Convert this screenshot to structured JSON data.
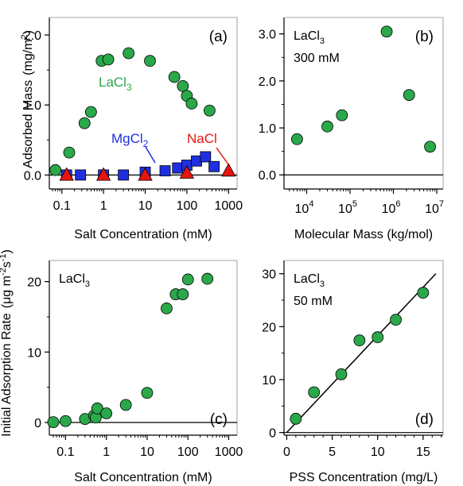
{
  "colors": {
    "green": "#2aa84a",
    "blue": "#1f2fe0",
    "red": "#e8150f",
    "axis": "#000000"
  },
  "shared_labels": {
    "y_top": "Adsorbed Mass",
    "y_top_unit": "(mg/m",
    "y_top_sup": "2",
    "y_top_close": ")",
    "y_bottom_main": "Initial Adsorption Rate",
    "y_bottom_unit": "(μg m",
    "y_bottom_sup1": "-2",
    "y_bottom_s": "s",
    "y_bottom_sup2": "-1",
    "y_bottom_close": ")"
  },
  "chart_data": [
    {
      "type": "scatter",
      "panel": "(a)",
      "xlabel": "Salt Concentration (mM)",
      "x_scale": "log",
      "xlim": [
        0.05,
        1600
      ],
      "ylim": [
        -0.2,
        2.25
      ],
      "x_tick_labels": [
        "0.1",
        "1",
        "10",
        "100",
        "1000"
      ],
      "x_tick_values": [
        0.1,
        1,
        10,
        100,
        1000
      ],
      "y_tick_labels": [
        "0.0",
        "1.0",
        "2.0"
      ],
      "y_tick_values": [
        0,
        1,
        2
      ],
      "series": [
        {
          "name": "LaCl",
          "name_sub": "3",
          "marker": "circle",
          "color": "#2aa84a",
          "x": [
            0.07,
            0.15,
            0.35,
            0.5,
            0.9,
            1.3,
            4,
            13,
            50,
            80,
            100,
            130,
            350
          ],
          "y": [
            0.07,
            0.32,
            0.74,
            0.9,
            1.63,
            1.65,
            1.74,
            1.63,
            1.4,
            1.27,
            1.13,
            1.02,
            0.92
          ]
        },
        {
          "name": "MgCl",
          "name_sub": "2",
          "marker": "square",
          "color": "#1f2fe0",
          "x": [
            0.13,
            0.28,
            1.0,
            3.0,
            10,
            30,
            60,
            100,
            170,
            280,
            450
          ],
          "y": [
            0.0,
            0.0,
            0.0,
            0.0,
            0.04,
            0.06,
            0.1,
            0.14,
            0.2,
            0.26,
            0.12
          ]
        },
        {
          "name": "NaCl",
          "name_sub": "",
          "marker": "triangle",
          "color": "#e8150f",
          "x": [
            0.13,
            1.0,
            10,
            100,
            1000
          ],
          "y": [
            0.0,
            0.0,
            0.0,
            0.03,
            0.06
          ]
        }
      ]
    },
    {
      "type": "scatter",
      "panel": "(b)",
      "annotation_line1": "LaCl",
      "annotation_sub": "3",
      "annotation_line2": "300 mM",
      "xlabel": "Molecular Mass (kg/mol)",
      "x_scale": "log",
      "xlim": [
        3000,
        14000000
      ],
      "ylim": [
        -0.3,
        3.35
      ],
      "x_tick_labels_base": [
        "10",
        "10",
        "10",
        "10"
      ],
      "x_tick_labels_exp": [
        "4",
        "5",
        "6",
        "7"
      ],
      "x_tick_values": [
        10000,
        100000,
        1000000,
        10000000
      ],
      "y_tick_labels": [
        "0.0",
        "1.0",
        "2.0",
        "3.0"
      ],
      "y_tick_values": [
        0,
        1,
        2,
        3
      ],
      "series": [
        {
          "marker": "circle",
          "color": "#2aa84a",
          "x": [
            6000,
            30000,
            65000,
            700000,
            2300000,
            7000000
          ],
          "y": [
            0.76,
            1.03,
            1.27,
            3.05,
            1.7,
            0.6
          ]
        }
      ]
    },
    {
      "type": "scatter",
      "panel": "(c)",
      "annotation_line1": "LaCl",
      "annotation_sub": "3",
      "xlabel": "Salt Concentration (mM)",
      "x_scale": "log",
      "xlim": [
        0.04,
        1600
      ],
      "ylim": [
        -1.8,
        23
      ],
      "x_tick_labels": [
        "0.1",
        "1",
        "10",
        "100",
        "1000"
      ],
      "x_tick_values": [
        0.1,
        1,
        10,
        100,
        1000
      ],
      "y_tick_labels": [
        "0",
        "10",
        "20"
      ],
      "y_tick_values": [
        0,
        10,
        20
      ],
      "series": [
        {
          "marker": "circle",
          "color": "#2aa84a",
          "x": [
            0.05,
            0.1,
            0.3,
            0.5,
            0.55,
            0.6,
            1.0,
            3,
            10,
            30,
            50,
            75,
            100,
            300
          ],
          "y": [
            0.05,
            0.2,
            0.5,
            1.0,
            0.7,
            2.0,
            1.3,
            2.5,
            4.2,
            16.2,
            18.2,
            18.2,
            20.3,
            20.4
          ]
        }
      ]
    },
    {
      "type": "scatter",
      "panel": "(d)",
      "annotation_line1": "LaCl",
      "annotation_sub": "3",
      "annotation_line2": "50 mM",
      "xlabel": "PSS Concentration  (mg/L)",
      "x_scale": "linear",
      "xlim": [
        -0.3,
        17.2
      ],
      "ylim": [
        -0.5,
        32.5
      ],
      "x_tick_labels": [
        "0",
        "5",
        "10",
        "15"
      ],
      "x_tick_values": [
        0,
        5,
        10,
        15
      ],
      "y_tick_labels": [
        "0",
        "10",
        "20",
        "30"
      ],
      "y_tick_values": [
        0,
        10,
        20,
        30
      ],
      "fit_line": {
        "x": [
          0,
          16.4
        ],
        "y": [
          0,
          30
        ]
      },
      "series": [
        {
          "marker": "circle",
          "color": "#2aa84a",
          "x": [
            1,
            3,
            6,
            8,
            10,
            12,
            15
          ],
          "y": [
            2.6,
            7.6,
            11.0,
            17.4,
            18.0,
            21.3,
            26.4
          ]
        }
      ]
    }
  ]
}
